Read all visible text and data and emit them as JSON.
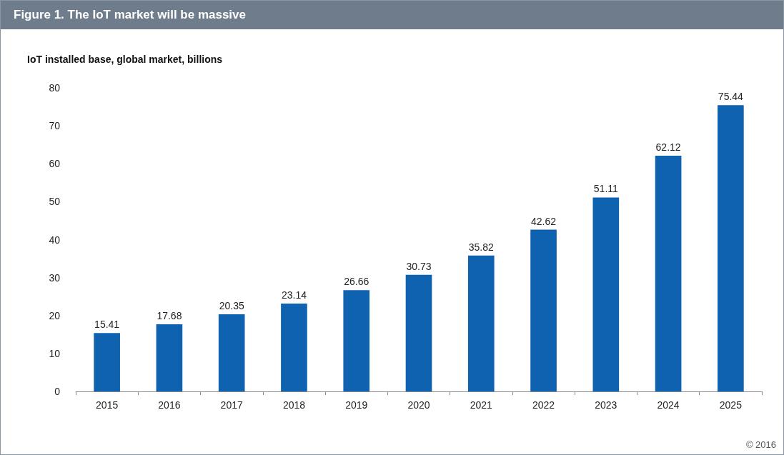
{
  "chart_data": {
    "type": "bar",
    "title": "Figure 1. The IoT market will be massive",
    "subtitle": "IoT installed base, global market, billions",
    "categories": [
      "2015",
      "2016",
      "2017",
      "2018",
      "2019",
      "2020",
      "2021",
      "2022",
      "2023",
      "2024",
      "2025"
    ],
    "values": [
      15.41,
      17.68,
      20.35,
      23.14,
      26.66,
      30.73,
      35.82,
      42.62,
      51.11,
      62.12,
      75.44
    ],
    "color": "#0f62b0",
    "ylim": [
      0,
      80
    ],
    "yticks": [
      0,
      10,
      20,
      30,
      40,
      50,
      60,
      70,
      80
    ],
    "grid": false,
    "data_labels": true,
    "annotations": [
      "© 2016"
    ]
  }
}
